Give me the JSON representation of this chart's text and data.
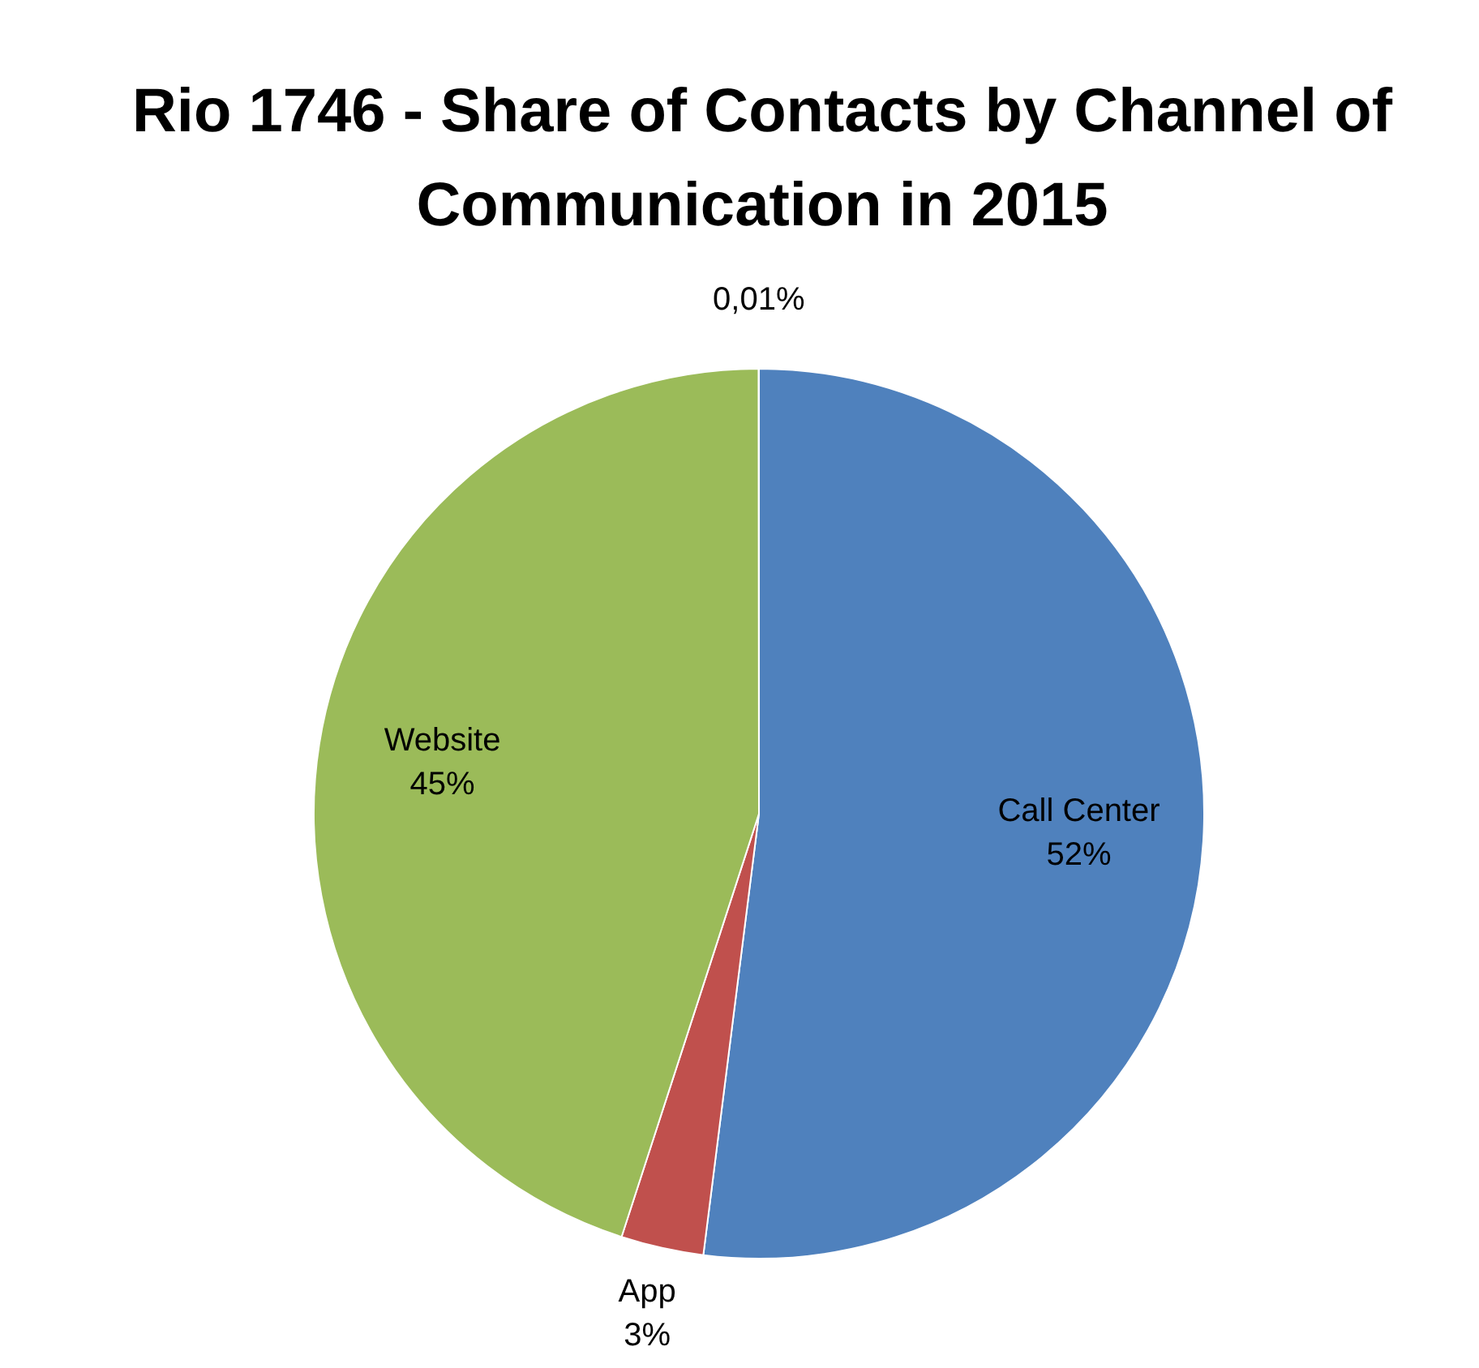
{
  "chart_data": {
    "type": "pie",
    "title": "Rio 1746 - Share of Contacts by Channel of Communication in 2015",
    "categories": [
      "Call Center",
      "App",
      "Website",
      null
    ],
    "values": [
      52,
      3,
      45,
      0.01
    ],
    "colors": [
      "#4f81bd",
      "#c0504d",
      "#9bbb59",
      "#8064a2"
    ],
    "value_labels": [
      "52%",
      "3%",
      "45%",
      "0,01%"
    ],
    "legend": false
  }
}
